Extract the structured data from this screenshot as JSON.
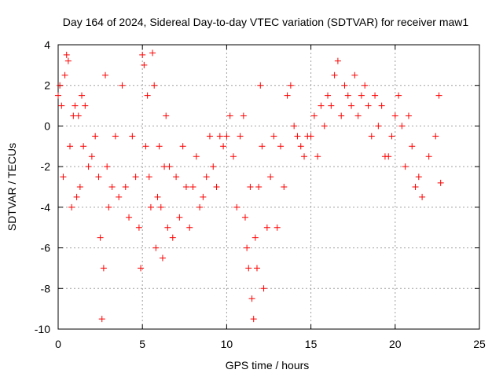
{
  "chart_data": {
    "type": "scatter",
    "title": "Day 164 of 2024, Sidereal Day-to-day VTEC variation (SDTVAR) for receiver maw1",
    "xlabel": "GPS time / hours",
    "ylabel": "SDTVAR / TECUs",
    "xlim": [
      0,
      25
    ],
    "ylim": [
      -10,
      4
    ],
    "x_ticks": [
      0,
      5,
      10,
      15,
      20,
      25
    ],
    "y_ticks": [
      -10,
      -8,
      -6,
      -4,
      -2,
      0,
      2,
      4
    ],
    "grid": true,
    "marker": "plus",
    "series": [
      {
        "name": "SDTVAR",
        "color": "#ff0000",
        "x": [
          0.0,
          0.1,
          0.2,
          0.3,
          0.4,
          0.5,
          0.6,
          0.7,
          0.8,
          0.9,
          1.0,
          1.1,
          1.2,
          1.3,
          1.4,
          1.5,
          1.6,
          1.8,
          2.0,
          2.2,
          2.4,
          2.5,
          2.6,
          2.7,
          2.8,
          2.9,
          3.0,
          3.2,
          3.4,
          3.6,
          3.8,
          4.0,
          4.2,
          4.4,
          4.6,
          4.8,
          4.9,
          5.0,
          5.1,
          5.2,
          5.3,
          5.4,
          5.5,
          5.6,
          5.7,
          5.8,
          5.9,
          6.0,
          6.1,
          6.2,
          6.3,
          6.4,
          6.5,
          6.6,
          6.8,
          7.0,
          7.2,
          7.4,
          7.6,
          7.8,
          8.0,
          8.2,
          8.4,
          8.6,
          8.8,
          9.0,
          9.2,
          9.4,
          9.6,
          9.8,
          10.0,
          10.2,
          10.4,
          10.6,
          10.8,
          11.0,
          11.1,
          11.2,
          11.3,
          11.4,
          11.5,
          11.6,
          11.7,
          11.8,
          11.9,
          12.0,
          12.1,
          12.2,
          12.4,
          12.6,
          12.8,
          13.0,
          13.2,
          13.4,
          13.6,
          13.8,
          14.0,
          14.2,
          14.4,
          14.6,
          14.8,
          15.0,
          15.2,
          15.4,
          15.6,
          15.8,
          16.0,
          16.2,
          16.4,
          16.6,
          16.8,
          17.0,
          17.2,
          17.4,
          17.6,
          17.8,
          18.0,
          18.2,
          18.4,
          18.6,
          18.8,
          19.0,
          19.2,
          19.4,
          19.6,
          19.8,
          20.0,
          20.2,
          20.4,
          20.6,
          20.8,
          21.0,
          21.2,
          21.4,
          21.6,
          22.0,
          22.4,
          22.6,
          22.7
        ],
        "y": [
          1.5,
          2.0,
          1.0,
          -2.5,
          2.5,
          3.5,
          3.2,
          -1.0,
          -4.0,
          0.5,
          1.0,
          -3.5,
          0.5,
          -3.0,
          1.5,
          -1.0,
          1.0,
          -2.0,
          -1.5,
          -0.5,
          -2.5,
          -5.5,
          -9.5,
          -7.0,
          2.5,
          -2.0,
          -4.0,
          -3.0,
          -0.5,
          -3.5,
          2.0,
          -3.0,
          -4.5,
          -0.5,
          -2.5,
          -5.0,
          -7.0,
          3.5,
          3.0,
          -1.0,
          1.5,
          -2.5,
          -4.0,
          3.6,
          2.0,
          -6.0,
          -3.5,
          -1.0,
          -4.0,
          -6.5,
          -2.0,
          0.5,
          -5.0,
          -2.0,
          -5.5,
          -2.5,
          -4.5,
          -1.0,
          -3.0,
          -5.0,
          -3.0,
          -1.5,
          -4.0,
          -3.5,
          -2.5,
          -0.5,
          -2.0,
          -3.0,
          -0.5,
          -1.0,
          -0.5,
          0.5,
          -1.5,
          -4.0,
          -0.5,
          0.5,
          -4.5,
          -6.0,
          -7.0,
          -3.0,
          -8.5,
          -9.5,
          -5.5,
          -7.0,
          -3.0,
          2.0,
          -1.0,
          -8.0,
          -5.0,
          -2.5,
          -0.5,
          -5.0,
          -1.0,
          -3.0,
          1.5,
          2.0,
          0.0,
          -0.5,
          -1.0,
          -1.5,
          -0.5,
          -0.5,
          0.5,
          -1.5,
          1.0,
          0.0,
          1.5,
          1.0,
          2.5,
          3.2,
          0.5,
          2.0,
          1.5,
          1.0,
          2.5,
          0.5,
          1.5,
          2.0,
          1.0,
          -0.5,
          1.5,
          0.0,
          1.0,
          -1.5,
          -1.5,
          -0.5,
          0.5,
          1.5,
          0.0,
          -2.0,
          0.5,
          -1.0,
          -3.0,
          -2.5,
          -3.5,
          -1.5,
          -0.5,
          1.5,
          -2.8
        ]
      }
    ]
  }
}
